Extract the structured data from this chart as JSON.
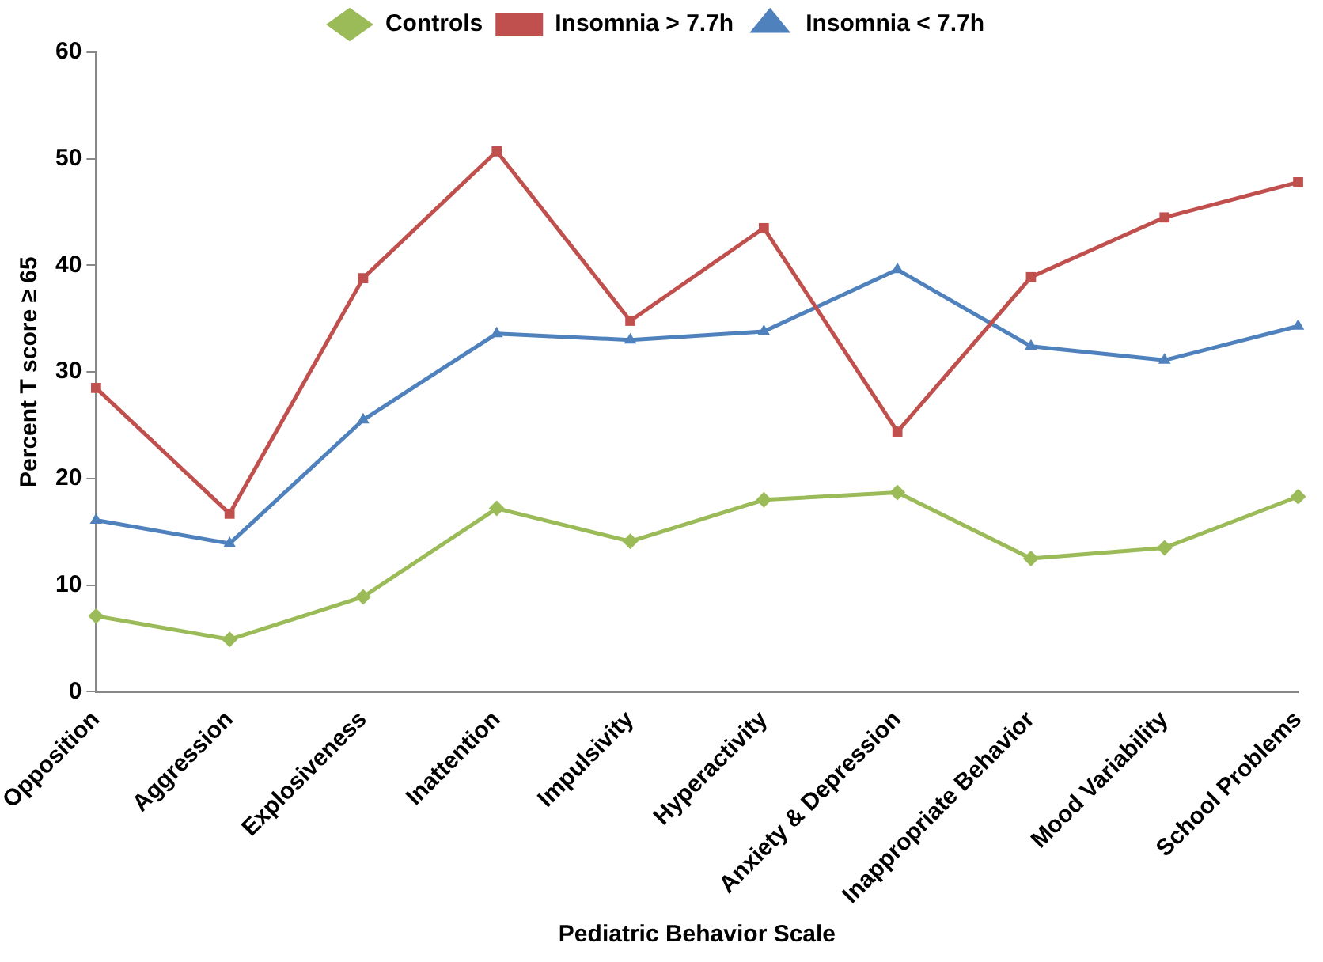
{
  "chart_data": {
    "type": "line",
    "xlabel": "Pediatric Behavior Scale",
    "ylabel": "Percent T score ≥ 65",
    "categories": [
      "Opposition",
      "Aggression",
      "Explosiveness",
      "Inattention",
      "Impulsivity",
      "Hyperactivity",
      "Anxiety & Depression",
      "Inappropriate Behavior",
      "Mood Variability",
      "School Problems"
    ],
    "series": [
      {
        "name": "Controls",
        "color": "#9bbb59",
        "marker": "diamond",
        "values": [
          7.1,
          4.9,
          8.9,
          17.2,
          14.1,
          18.0,
          18.7,
          12.5,
          13.5,
          18.3
        ]
      },
      {
        "name": "Insomnia > 7.7h",
        "color": "#c0504d",
        "marker": "square",
        "values": [
          28.5,
          16.7,
          38.8,
          50.7,
          34.8,
          43.5,
          24.4,
          38.9,
          44.5,
          47.8
        ]
      },
      {
        "name": "Insomnia < 7.7h",
        "color": "#4f81bd",
        "marker": "triangle",
        "values": [
          16.1,
          13.9,
          25.5,
          33.6,
          33.0,
          33.8,
          39.6,
          32.4,
          31.1,
          34.3
        ]
      }
    ],
    "ylim": [
      0,
      60
    ],
    "yticks": [
      0,
      10,
      20,
      30,
      40,
      50,
      60
    ],
    "grid": false,
    "legend": "top",
    "line_style": "solid"
  }
}
